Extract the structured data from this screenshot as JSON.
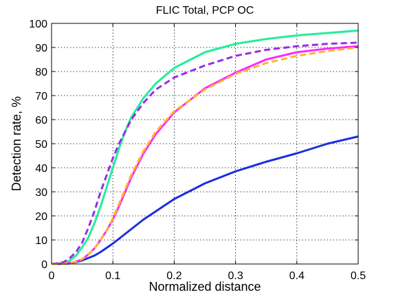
{
  "chart_data": {
    "type": "line",
    "title": "FLIC Total, PCP OC",
    "xlabel": "Normalized distance",
    "ylabel": "Detection rate, %",
    "xlim": [
      0,
      0.5
    ],
    "ylim": [
      0,
      100
    ],
    "xticks": [
      "0",
      "0.1",
      "0.2",
      "0.3",
      "0.4",
      "0.5"
    ],
    "yticks": [
      "0",
      "10",
      "20",
      "30",
      "40",
      "50",
      "60",
      "70",
      "80",
      "90",
      "100"
    ],
    "grid": true,
    "series": [
      {
        "color": "#1a2fdc",
        "style": "solid",
        "x": [
          0,
          0.02,
          0.03,
          0.04,
          0.05,
          0.06,
          0.07,
          0.08,
          0.1,
          0.12,
          0.15,
          0.2,
          0.25,
          0.3,
          0.35,
          0.4,
          0.45,
          0.5
        ],
        "y": [
          0,
          0,
          0.3,
          0.8,
          1.5,
          2.5,
          3.5,
          5,
          8.5,
          12.5,
          18.5,
          27,
          33.5,
          38.5,
          42.5,
          46,
          50,
          53
        ]
      },
      {
        "color": "#22ee99",
        "style": "solid",
        "x": [
          0,
          0.02,
          0.03,
          0.04,
          0.05,
          0.06,
          0.07,
          0.08,
          0.09,
          0.1,
          0.11,
          0.12,
          0.13,
          0.15,
          0.17,
          0.2,
          0.25,
          0.3,
          0.35,
          0.4,
          0.45,
          0.5
        ],
        "y": [
          0,
          0.5,
          1.5,
          3.5,
          7,
          11,
          17,
          24,
          32,
          40,
          48,
          55,
          61,
          69,
          75,
          81.5,
          88,
          91.5,
          93.5,
          95,
          96,
          97
        ]
      },
      {
        "color": "#9a2be8",
        "style": "dashed",
        "x": [
          0,
          0.02,
          0.03,
          0.04,
          0.05,
          0.06,
          0.07,
          0.08,
          0.09,
          0.1,
          0.11,
          0.12,
          0.13,
          0.15,
          0.17,
          0.2,
          0.25,
          0.3,
          0.35,
          0.4,
          0.45,
          0.5
        ],
        "y": [
          0,
          0.8,
          2.5,
          5,
          9,
          15,
          22,
          30,
          37,
          44,
          50,
          55,
          60,
          67,
          72.5,
          77.5,
          82.5,
          86.5,
          89,
          90.5,
          91.5,
          92
        ]
      },
      {
        "color": "#ff28ff",
        "style": "solid",
        "x": [
          0,
          0.02,
          0.04,
          0.05,
          0.06,
          0.07,
          0.08,
          0.09,
          0.1,
          0.11,
          0.12,
          0.13,
          0.15,
          0.17,
          0.2,
          0.25,
          0.3,
          0.35,
          0.4,
          0.45,
          0.5
        ],
        "y": [
          0,
          0,
          1,
          2,
          4,
          6.5,
          10,
          14,
          18.5,
          24,
          30,
          36,
          46,
          54,
          63,
          73,
          79.5,
          85,
          88,
          89.5,
          90.5
        ]
      },
      {
        "color": "#ffb428",
        "style": "dashed",
        "x": [
          0,
          0.02,
          0.04,
          0.05,
          0.06,
          0.07,
          0.08,
          0.09,
          0.1,
          0.11,
          0.12,
          0.13,
          0.15,
          0.17,
          0.2,
          0.25,
          0.3,
          0.35,
          0.4,
          0.45,
          0.5
        ],
        "y": [
          0,
          0,
          1,
          2,
          4,
          6.5,
          10,
          14,
          19,
          25,
          31,
          37,
          47,
          55,
          63.5,
          72.5,
          79,
          83.5,
          86.5,
          88.5,
          90
        ]
      }
    ]
  }
}
